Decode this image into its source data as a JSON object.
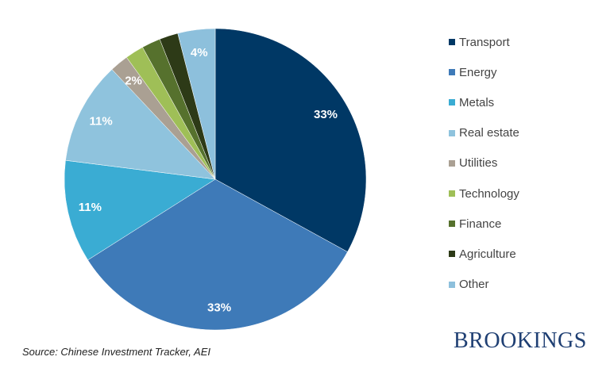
{
  "chart_data": {
    "type": "pie",
    "start_angle": "top, clockwise",
    "legend_position": "right",
    "slices": [
      {
        "name": "Transport",
        "value": 33,
        "label": "33%",
        "color": "#003865"
      },
      {
        "name": "Energy",
        "value": 33,
        "label": "33%",
        "color": "#3e7ab8"
      },
      {
        "name": "Metals",
        "value": 11,
        "label": "11%",
        "color": "#3aacd3"
      },
      {
        "name": "Real estate",
        "value": 11,
        "label": "11%",
        "color": "#8fc3dd"
      },
      {
        "name": "Utilities",
        "value": 2,
        "label": "2%",
        "color": "#aaa093"
      },
      {
        "name": "Technology",
        "value": 2,
        "label": "",
        "color": "#9fbf57"
      },
      {
        "name": "Finance",
        "value": 2,
        "label": "",
        "color": "#56712d"
      },
      {
        "name": "Agriculture",
        "value": 2,
        "label": "",
        "color": "#2d3a17"
      },
      {
        "name": "Other",
        "value": 4,
        "label": "4%",
        "color": "#8dc0dc"
      }
    ]
  },
  "source": "Source: Chinese Investment Tracker, AEI",
  "logo": "BROOKINGS"
}
